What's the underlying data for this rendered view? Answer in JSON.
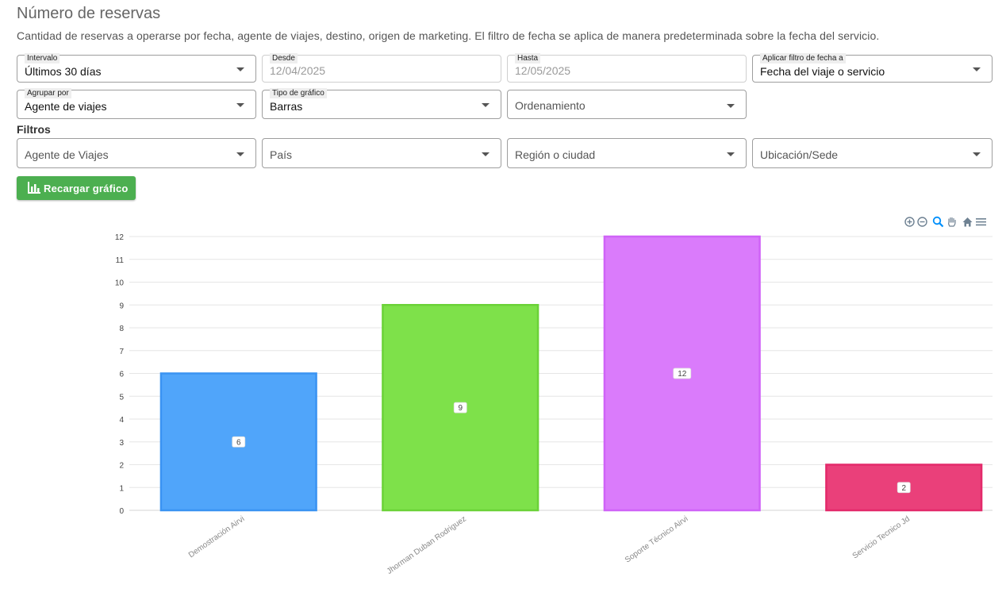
{
  "header": {
    "title": "Número de reservas",
    "description": "Cantidad de reservas a operarse por fecha, agente de viajes, destino, origen de marketing. El filtro de fecha se aplica de manera predeterminada sobre la fecha del servicio."
  },
  "controls": {
    "interval": {
      "label": "Intervalo",
      "value": "Últimos 30 días"
    },
    "from": {
      "label": "Desde",
      "value": "12/04/2025"
    },
    "to": {
      "label": "Hasta",
      "value": "12/05/2025"
    },
    "apply_date": {
      "label": "Aplicar filtro de fecha a",
      "value": "Fecha del viaje o servicio"
    },
    "group_by": {
      "label": "Agrupar por",
      "value": "Agente de viajes"
    },
    "chart_type": {
      "label": "Tipo de gráfico",
      "value": "Barras"
    },
    "ordering": {
      "placeholder": "Ordenamiento"
    }
  },
  "filters": {
    "title": "Filtros",
    "agent": "Agente de Viajes",
    "country": "País",
    "region": "Región o ciudad",
    "location": "Ubicación/Sede"
  },
  "reload_button": {
    "label": "Recargar gráfico",
    "icon": "bar-chart-icon"
  },
  "toolbar": {
    "icons": [
      "zoom-in-icon",
      "zoom-out-icon",
      "magnifier-icon",
      "pan-hand-icon",
      "home-icon",
      "menu-icon"
    ]
  },
  "chart_data": {
    "type": "bar",
    "categories": [
      "Demostración Airvi",
      "Jhorman Duban Rodriguez",
      "Soporte Técnico Airvi",
      "Servicio Tecnico Jd"
    ],
    "values": [
      6,
      9,
      12,
      2
    ],
    "colors": [
      "#4da3fa",
      "#7be046",
      "#d978fb",
      "#ea3c77"
    ],
    "border_colors": [
      "#3a93f2",
      "#6bd238",
      "#cf63f7",
      "#e3296a"
    ],
    "ylim": [
      0,
      12
    ],
    "yticks": [
      0,
      1,
      2,
      3,
      4,
      5,
      6,
      7,
      8,
      9,
      10,
      11,
      12
    ],
    "grid": true,
    "title": "",
    "xlabel": "",
    "ylabel": ""
  }
}
